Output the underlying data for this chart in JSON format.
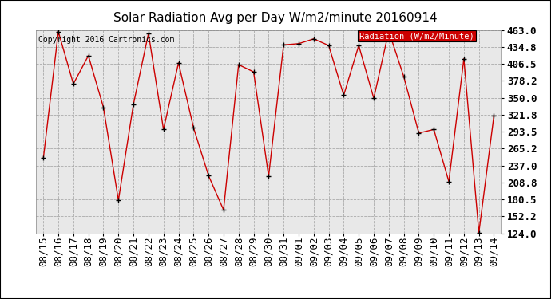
{
  "title": "Solar Radiation Avg per Day W/m2/minute 20160914",
  "copyright": "Copyright 2016 Cartronics.com",
  "legend_label": "Radiation (W/m2/Minute)",
  "legend_bg": "#cc0000",
  "legend_text_color": "#ffffff",
  "line_color": "#cc0000",
  "marker_color": "#000000",
  "bg_color": "#ffffff",
  "plot_bg_color": "#e8e8e8",
  "grid_color": "#aaaaaa",
  "border_color": "#000000",
  "dates": [
    "08/15",
    "08/16",
    "08/17",
    "08/18",
    "08/19",
    "08/20",
    "08/21",
    "08/22",
    "08/23",
    "08/24",
    "08/25",
    "08/26",
    "08/27",
    "08/28",
    "08/29",
    "08/30",
    "08/31",
    "09/01",
    "09/02",
    "09/03",
    "09/04",
    "09/05",
    "09/06",
    "09/07",
    "09/08",
    "09/09",
    "09/10",
    "09/11",
    "09/12",
    "09/13",
    "09/14"
  ],
  "values": [
    249,
    460,
    373,
    420,
    334,
    179,
    339,
    457,
    297,
    408,
    300,
    220,
    163,
    405,
    393,
    219,
    438,
    440,
    448,
    437,
    354,
    437,
    349,
    461,
    385,
    291,
    297,
    210,
    415,
    125,
    320
  ],
  "ylim": [
    124.0,
    463.0
  ],
  "yticks": [
    124.0,
    152.2,
    180.5,
    208.8,
    237.0,
    265.2,
    293.5,
    321.8,
    350.0,
    378.2,
    406.5,
    434.8,
    463.0
  ],
  "title_fontsize": 11,
  "copyright_fontsize": 7,
  "tick_fontsize": 9,
  "legend_fontsize": 7.5
}
